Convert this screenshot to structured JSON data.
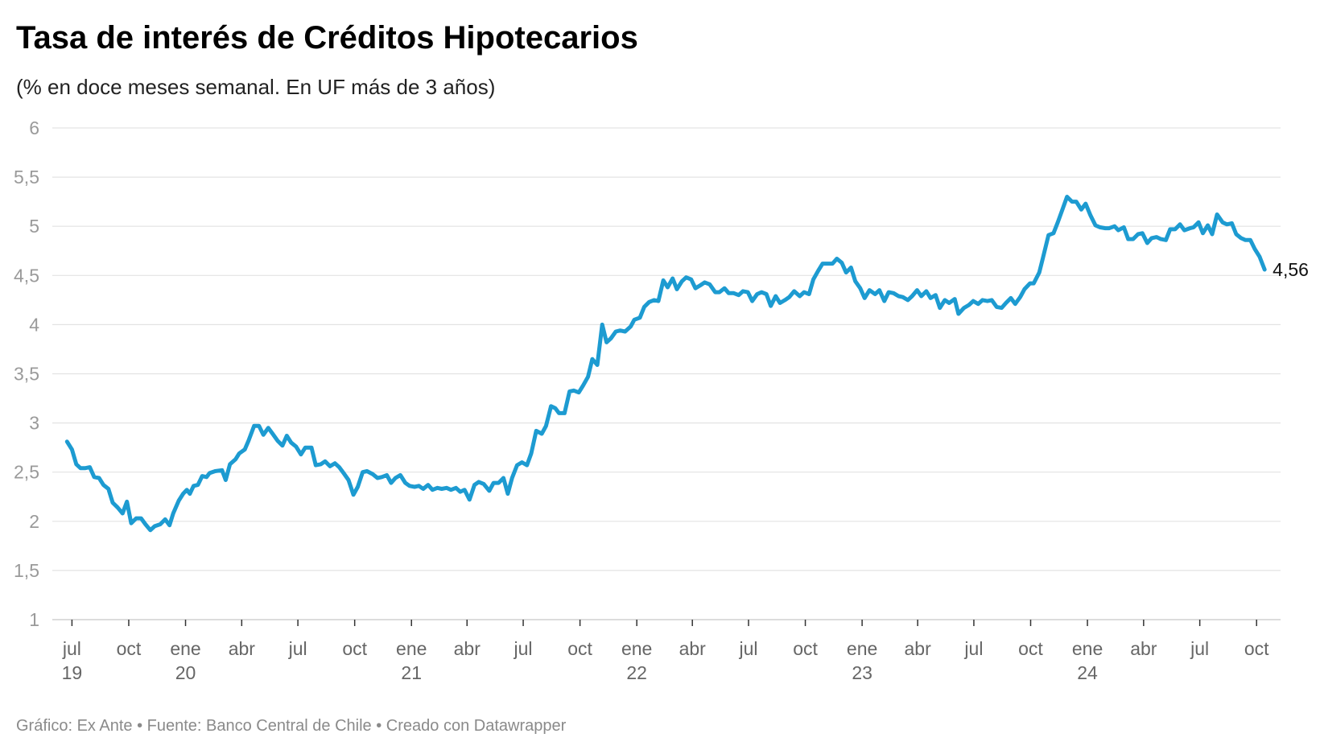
{
  "chart_data": {
    "type": "line",
    "title": "Tasa de interés de Créditos Hipotecarios",
    "subtitle": "(% en doce meses semanal. En UF más de 3 años)",
    "xlabel": "",
    "ylabel": "",
    "ylim": [
      1,
      6
    ],
    "grid": true,
    "legend": "none",
    "line_color": "#1d9bd1",
    "y_ticks": [
      {
        "value": 6,
        "label": "6"
      },
      {
        "value": 5.5,
        "label": "5,5"
      },
      {
        "value": 5,
        "label": "5"
      },
      {
        "value": 4.5,
        "label": "4,5"
      },
      {
        "value": 4,
        "label": "4"
      },
      {
        "value": 3.5,
        "label": "3,5"
      },
      {
        "value": 3,
        "label": "3"
      },
      {
        "value": 2.5,
        "label": "2,5"
      },
      {
        "value": 2,
        "label": "2"
      },
      {
        "value": 1.5,
        "label": "1,5"
      },
      {
        "value": 1,
        "label": "1"
      }
    ],
    "x_ticks": [
      {
        "date": "2019-07-01",
        "month": "jul",
        "year": "19"
      },
      {
        "date": "2019-10-01",
        "month": "oct"
      },
      {
        "date": "2020-01-01",
        "month": "ene",
        "year": "20"
      },
      {
        "date": "2020-04-01",
        "month": "abr"
      },
      {
        "date": "2020-07-01",
        "month": "jul"
      },
      {
        "date": "2020-10-01",
        "month": "oct"
      },
      {
        "date": "2021-01-01",
        "month": "ene",
        "year": "21"
      },
      {
        "date": "2021-04-01",
        "month": "abr"
      },
      {
        "date": "2021-07-01",
        "month": "jul"
      },
      {
        "date": "2021-10-01",
        "month": "oct"
      },
      {
        "date": "2022-01-01",
        "month": "ene",
        "year": "22"
      },
      {
        "date": "2022-04-01",
        "month": "abr"
      },
      {
        "date": "2022-07-01",
        "month": "jul"
      },
      {
        "date": "2022-10-01",
        "month": "oct"
      },
      {
        "date": "2023-01-01",
        "month": "ene",
        "year": "23"
      },
      {
        "date": "2023-04-01",
        "month": "abr"
      },
      {
        "date": "2023-07-01",
        "month": "jul"
      },
      {
        "date": "2023-10-01",
        "month": "oct"
      },
      {
        "date": "2024-01-01",
        "month": "ene",
        "year": "24"
      },
      {
        "date": "2024-04-01",
        "month": "abr"
      },
      {
        "date": "2024-07-01",
        "month": "jul"
      },
      {
        "date": "2024-10-01",
        "month": "oct"
      }
    ],
    "x": [
      "2019-06-23",
      "2019-07-01",
      "2019-07-08",
      "2019-07-15",
      "2019-07-22",
      "2019-07-30",
      "2019-08-06",
      "2019-08-14",
      "2019-08-21",
      "2019-08-29",
      "2019-09-05",
      "2019-09-13",
      "2019-09-21",
      "2019-09-28",
      "2019-10-05",
      "2019-10-13",
      "2019-10-21",
      "2019-10-28",
      "2019-11-05",
      "2019-11-12",
      "2019-11-21",
      "2019-11-29",
      "2019-12-06",
      "2019-12-12",
      "2019-12-21",
      "2019-12-28",
      "2020-01-03",
      "2020-01-08",
      "2020-01-14",
      "2020-01-21",
      "2020-01-28",
      "2020-02-04",
      "2020-02-09",
      "2020-02-18",
      "2020-02-29",
      "2020-03-06",
      "2020-03-13",
      "2020-03-22",
      "2020-03-28",
      "2020-04-06",
      "2020-04-12",
      "2020-04-21",
      "2020-04-29",
      "2020-05-06",
      "2020-05-14",
      "2020-05-21",
      "2020-05-29",
      "2020-06-06",
      "2020-06-13",
      "2020-06-20",
      "2020-06-28",
      "2020-07-06",
      "2020-07-13",
      "2020-07-23",
      "2020-07-30",
      "2020-08-07",
      "2020-08-14",
      "2020-08-22",
      "2020-08-30",
      "2020-09-06",
      "2020-09-13",
      "2020-09-21",
      "2020-09-29",
      "2020-10-06",
      "2020-10-14",
      "2020-10-21",
      "2020-10-30",
      "2020-11-07",
      "2020-11-14",
      "2020-11-22",
      "2020-11-29",
      "2020-12-06",
      "2020-12-14",
      "2020-12-22",
      "2020-12-29",
      "2021-01-06",
      "2021-01-13",
      "2021-01-20",
      "2021-01-28",
      "2021-02-04",
      "2021-02-12",
      "2021-02-19",
      "2021-02-27",
      "2021-03-06",
      "2021-03-14",
      "2021-03-21",
      "2021-03-28",
      "2021-04-05",
      "2021-04-13",
      "2021-04-20",
      "2021-04-28",
      "2021-05-07",
      "2021-05-14",
      "2021-05-22",
      "2021-05-30",
      "2021-06-06",
      "2021-06-13",
      "2021-06-21",
      "2021-06-29",
      "2021-07-07",
      "2021-07-14",
      "2021-07-22",
      "2021-07-31",
      "2021-08-07",
      "2021-08-15",
      "2021-08-22",
      "2021-08-28",
      "2021-09-06",
      "2021-09-14",
      "2021-09-21",
      "2021-09-29",
      "2021-10-06",
      "2021-10-14",
      "2021-10-21",
      "2021-10-29",
      "2021-11-06",
      "2021-11-13",
      "2021-11-20",
      "2021-11-28",
      "2021-12-05",
      "2021-12-13",
      "2021-12-22",
      "2021-12-28",
      "2022-01-06",
      "2022-01-13",
      "2022-01-21",
      "2022-01-29",
      "2022-02-05",
      "2022-02-13",
      "2022-02-20",
      "2022-02-28",
      "2022-03-07",
      "2022-03-15",
      "2022-03-22",
      "2022-03-30",
      "2022-04-06",
      "2022-04-14",
      "2022-04-21",
      "2022-04-29",
      "2022-05-08",
      "2022-05-15",
      "2022-05-23",
      "2022-05-30",
      "2022-06-07",
      "2022-06-15",
      "2022-06-22",
      "2022-06-30",
      "2022-07-07",
      "2022-07-15",
      "2022-07-22",
      "2022-07-30",
      "2022-08-06",
      "2022-08-14",
      "2022-08-21",
      "2022-08-29",
      "2022-09-05",
      "2022-09-13",
      "2022-09-22",
      "2022-09-29",
      "2022-10-07",
      "2022-10-14",
      "2022-10-22",
      "2022-10-29",
      "2022-11-06",
      "2022-11-14",
      "2022-11-21",
      "2022-11-29",
      "2022-12-06",
      "2022-12-14",
      "2022-12-21",
      "2022-12-29",
      "2023-01-05",
      "2023-01-13",
      "2023-01-22",
      "2023-01-29",
      "2023-02-06",
      "2023-02-13",
      "2023-02-21",
      "2023-03-01",
      "2023-03-08",
      "2023-03-16",
      "2023-03-23",
      "2023-03-31",
      "2023-04-07",
      "2023-04-15",
      "2023-04-22",
      "2023-04-30",
      "2023-05-07",
      "2023-05-15",
      "2023-05-22",
      "2023-05-31",
      "2023-06-06",
      "2023-06-15",
      "2023-06-23",
      "2023-06-30",
      "2023-07-08",
      "2023-07-15",
      "2023-07-23",
      "2023-07-30",
      "2023-08-07",
      "2023-08-15",
      "2023-08-22",
      "2023-08-30",
      "2023-09-06",
      "2023-09-14",
      "2023-09-21",
      "2023-09-30",
      "2023-10-06",
      "2023-10-15",
      "2023-10-21",
      "2023-10-30",
      "2023-11-07",
      "2023-11-14",
      "2023-11-22",
      "2023-11-29",
      "2023-12-07",
      "2023-12-14",
      "2023-12-22",
      "2023-12-29",
      "2024-01-06",
      "2024-01-14",
      "2024-01-21",
      "2024-01-30",
      "2024-02-05",
      "2024-02-14",
      "2024-02-20",
      "2024-02-29",
      "2024-03-07",
      "2024-03-15",
      "2024-03-23",
      "2024-03-30",
      "2024-04-07",
      "2024-04-14",
      "2024-04-22",
      "2024-04-29",
      "2024-05-07",
      "2024-05-14",
      "2024-05-22",
      "2024-05-30",
      "2024-06-06",
      "2024-06-15",
      "2024-06-21",
      "2024-06-29",
      "2024-07-06",
      "2024-07-14",
      "2024-07-21",
      "2024-07-29",
      "2024-08-07",
      "2024-08-14",
      "2024-08-22",
      "2024-08-29",
      "2024-09-06",
      "2024-09-13",
      "2024-09-21",
      "2024-09-28",
      "2024-10-06",
      "2024-10-14"
    ],
    "series": [
      {
        "values": [
          2.81,
          2.73,
          2.58,
          2.54,
          2.54,
          2.55,
          2.45,
          2.44,
          2.37,
          2.33,
          2.19,
          2.14,
          2.08,
          2.2,
          1.98,
          2.03,
          2.03,
          1.97,
          1.91,
          1.95,
          1.97,
          2.02,
          1.96,
          2.08,
          2.21,
          2.28,
          2.32,
          2.28,
          2.36,
          2.37,
          2.46,
          2.45,
          2.49,
          2.51,
          2.52,
          2.42,
          2.58,
          2.63,
          2.69,
          2.73,
          2.82,
          2.97,
          2.97,
          2.88,
          2.95,
          2.89,
          2.82,
          2.77,
          2.87,
          2.8,
          2.76,
          2.68,
          2.75,
          2.75,
          2.57,
          2.58,
          2.61,
          2.56,
          2.59,
          2.55,
          2.49,
          2.42,
          2.27,
          2.35,
          2.5,
          2.51,
          2.48,
          2.44,
          2.45,
          2.47,
          2.39,
          2.44,
          2.47,
          2.39,
          2.36,
          2.35,
          2.36,
          2.33,
          2.37,
          2.32,
          2.34,
          2.33,
          2.34,
          2.32,
          2.34,
          2.3,
          2.32,
          2.22,
          2.37,
          2.4,
          2.38,
          2.31,
          2.39,
          2.39,
          2.44,
          2.28,
          2.44,
          2.57,
          2.6,
          2.57,
          2.69,
          2.92,
          2.89,
          2.97,
          3.17,
          3.15,
          3.1,
          3.1,
          3.32,
          3.33,
          3.31,
          3.38,
          3.47,
          3.65,
          3.59,
          4.0,
          3.82,
          3.86,
          3.93,
          3.94,
          3.93,
          3.98,
          4.05,
          4.07,
          4.18,
          4.23,
          4.25,
          4.24,
          4.45,
          4.38,
          4.47,
          4.36,
          4.44,
          4.48,
          4.46,
          4.37,
          4.4,
          4.43,
          4.41,
          4.33,
          4.33,
          4.37,
          4.32,
          4.32,
          4.3,
          4.34,
          4.33,
          4.24,
          4.31,
          4.33,
          4.31,
          4.19,
          4.29,
          4.22,
          4.25,
          4.28,
          4.34,
          4.29,
          4.33,
          4.31,
          4.46,
          4.55,
          4.62,
          4.62,
          4.62,
          4.67,
          4.63,
          4.53,
          4.58,
          4.44,
          4.37,
          4.27,
          4.35,
          4.31,
          4.35,
          4.24,
          4.33,
          4.32,
          4.29,
          4.28,
          4.25,
          4.29,
          4.35,
          4.29,
          4.34,
          4.27,
          4.3,
          4.17,
          4.25,
          4.22,
          4.26,
          4.11,
          4.17,
          4.2,
          4.24,
          4.21,
          4.25,
          4.24,
          4.25,
          4.18,
          4.17,
          4.22,
          4.27,
          4.21,
          4.28,
          4.36,
          4.42,
          4.42,
          4.53,
          4.68,
          4.91,
          4.93,
          5.04,
          5.18,
          5.3,
          5.25,
          5.25,
          5.17,
          5.23,
          5.11,
          5.01,
          4.99,
          4.98,
          4.98,
          5.0,
          4.96,
          4.99,
          4.87,
          4.87,
          4.92,
          4.93,
          4.83,
          4.88,
          4.89,
          4.87,
          4.86,
          4.97,
          4.97,
          5.02,
          4.96,
          4.98,
          4.99,
          5.04,
          4.93,
          5.01,
          4.92,
          5.12,
          5.04,
          5.02,
          5.03,
          4.92,
          4.88,
          4.86,
          4.86,
          4.77,
          4.69,
          4.56
        ]
      }
    ],
    "end_label": "4,56"
  },
  "footer": "Gráfico: Ex Ante • Fuente: Banco Central de Chile • Creado con Datawrapper"
}
